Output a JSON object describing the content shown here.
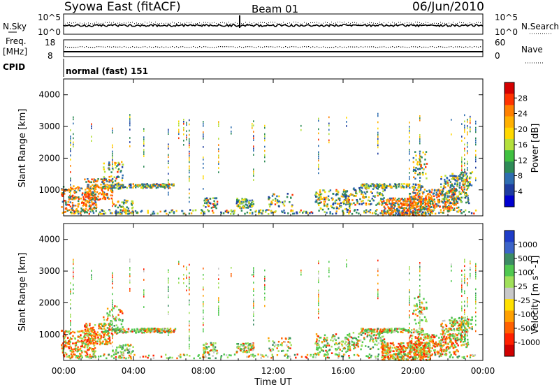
{
  "header": {
    "station": "Syowa East (fitACF)",
    "beam": "Beam 01",
    "date": "06/Jun/2010"
  },
  "strip": {
    "nsky_label": "N.Sky",
    "nsearch_label": "N.Search",
    "freq_label": "Freq.",
    "freq_unit": "[MHz]",
    "nave_label": "Nave",
    "cpid_label": "CPID",
    "cpid_value": "normal (fast) 151",
    "noise_ticks_left": [
      "10^5",
      "10^0"
    ],
    "noise_ticks_right": [
      "10^5",
      "10^0"
    ],
    "freq_ticks_left": [
      "18",
      "8"
    ],
    "freq_ticks_right": [
      "60",
      "0"
    ]
  },
  "chart_data": [
    {
      "type": "heatmap",
      "name": "power-panel",
      "xlabel": "",
      "ylabel": "Slant Range [km]",
      "y_ticks": [
        "4000",
        "3000",
        "2000",
        "1000"
      ],
      "y_tick_values": [
        4000,
        3000,
        2000,
        1000
      ],
      "ylim": [
        180,
        4500
      ],
      "xlim_hours": [
        0,
        24
      ],
      "colorbar": {
        "title": "Power [dB]",
        "labels": [
          "28",
          "24",
          "20",
          "16",
          "12",
          "8",
          "4"
        ],
        "colors": [
          "#d40000",
          "#ff3300",
          "#ff8000",
          "#ffb000",
          "#ffd800",
          "#b4e03c",
          "#40c040",
          "#2e8b57",
          "#2e6db0",
          "#1e3ca0",
          "#0000d0"
        ]
      }
    },
    {
      "type": "heatmap",
      "name": "velocity-panel",
      "xlabel": "Time UT",
      "ylabel": "Slant Range [km]",
      "y_ticks": [
        "4000",
        "3000",
        "2000",
        "1000"
      ],
      "y_tick_values": [
        4000,
        3000,
        2000,
        1000
      ],
      "ylim": [
        180,
        4500
      ],
      "xlim_hours": [
        0,
        24
      ],
      "x_ticks": [
        "00:00",
        "04:00",
        "08:00",
        "12:00",
        "16:00",
        "20:00",
        "00:00"
      ],
      "colorbar": {
        "title": "Velocity [m s^-1]",
        "labels": [
          "1000",
          "500",
          "100",
          "25",
          "-25",
          "-100",
          "-500",
          "-1000"
        ],
        "colors": [
          "#1e3cc8",
          "#3c64c8",
          "#3c8c64",
          "#50c850",
          "#a0e05a",
          "#c8c8c8",
          "#ffe000",
          "#ffa000",
          "#ff6000",
          "#ff2000",
          "#d00000"
        ]
      }
    }
  ]
}
